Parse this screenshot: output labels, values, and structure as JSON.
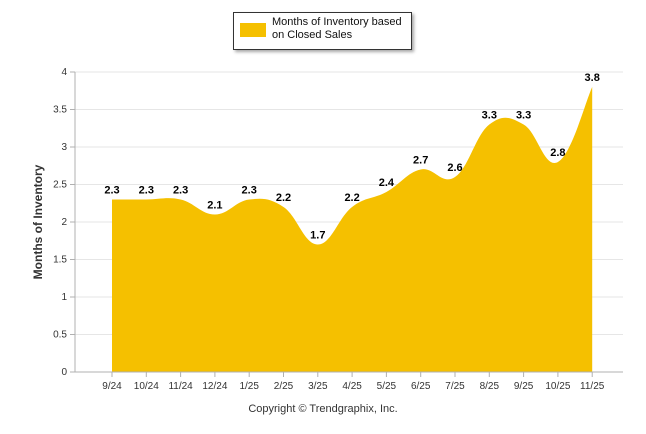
{
  "chart_data": {
    "type": "area",
    "legend": {
      "label": "Months of Inventory based on Closed Sales",
      "position": "top-center"
    },
    "ylabel": "Months of Inventory",
    "xlabel": "",
    "ylim": [
      0,
      4
    ],
    "yticks": [
      "0",
      "0.5",
      "1",
      "1.5",
      "2",
      "2.5",
      "3",
      "3.5",
      "4"
    ],
    "yticks_values": [
      0,
      0.5,
      1,
      1.5,
      2,
      2.5,
      3,
      3.5,
      4
    ],
    "categories": [
      "9/24",
      "10/24",
      "11/24",
      "12/24",
      "1/25",
      "2/25",
      "3/25",
      "4/25",
      "5/25",
      "6/25",
      "7/25",
      "8/25",
      "9/25",
      "10/25",
      "11/25"
    ],
    "values": [
      2.3,
      2.3,
      2.3,
      2.1,
      2.3,
      2.2,
      1.7,
      2.2,
      2.4,
      2.7,
      2.6,
      3.3,
      3.3,
      2.8,
      3.8
    ],
    "data_labels": [
      "2.3",
      "2.3",
      "2.3",
      "2.1",
      "2.3",
      "2.2",
      "1.7",
      "2.2",
      "2.4",
      "2.7",
      "2.6",
      "3.3",
      "3.3",
      "2.8",
      "3.8"
    ],
    "grid": true,
    "colors": {
      "fill": "#f5c000",
      "grid": "#e6e6e6",
      "axis": "#b0b0b0",
      "label": "#000000"
    }
  },
  "footer": {
    "copyright": "Copyright © Trendgraphix, Inc."
  }
}
